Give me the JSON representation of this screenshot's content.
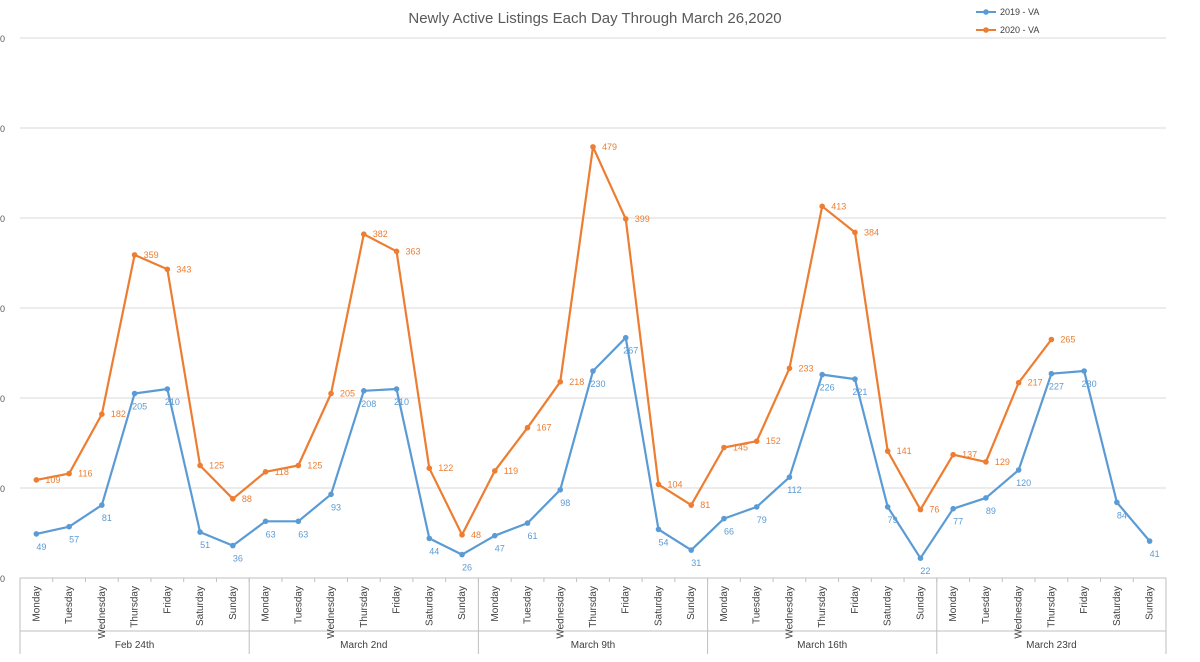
{
  "chart_data": {
    "type": "line",
    "title": "Newly Active Listings Each Day Through March 26,2020",
    "xlabel": "",
    "ylabel": "",
    "ylim": [
      0,
      600
    ],
    "grid": true,
    "legend_position": "top-right",
    "y_tick_labels": [
      "0",
      "00",
      "00",
      "00",
      "00",
      "00",
      "00"
    ],
    "categories": [
      "Monday",
      "Tuesday",
      "Wednesday",
      "Thursday",
      "Friday",
      "Saturday",
      "Sunday",
      "Monday",
      "Tuesday",
      "Wednesday",
      "Thursday",
      "Friday",
      "Saturday",
      "Sunday",
      "Monday",
      "Tuesday",
      "Wednesday",
      "Thursday",
      "Friday",
      "Saturday",
      "Sunday",
      "Monday",
      "Tuesday",
      "Wednesday",
      "Thursday",
      "Friday",
      "Saturday",
      "Sunday",
      "Monday",
      "Tuesday",
      "Wednesday",
      "Thursday",
      "Friday",
      "Saturday",
      "Sunday"
    ],
    "groups": [
      "Feb 24th",
      "March 2nd",
      "March 9th",
      "March 16th",
      "March 23rd"
    ],
    "series": [
      {
        "name": "2019 - VA",
        "color": "#5b9bd5",
        "values": [
          49,
          57,
          81,
          205,
          210,
          51,
          36,
          63,
          63,
          93,
          208,
          210,
          44,
          26,
          47,
          61,
          98,
          230,
          267,
          54,
          31,
          66,
          79,
          112,
          226,
          221,
          79,
          22,
          77,
          89,
          120,
          227,
          230,
          84,
          41
        ]
      },
      {
        "name": "2020 - VA",
        "color": "#ed7d31",
        "values": [
          109,
          116,
          182,
          359,
          343,
          125,
          88,
          118,
          125,
          205,
          382,
          363,
          122,
          48,
          119,
          167,
          218,
          479,
          399,
          104,
          81,
          145,
          152,
          233,
          413,
          384,
          141,
          76,
          137,
          129,
          217,
          265,
          null,
          null,
          null
        ]
      }
    ]
  }
}
